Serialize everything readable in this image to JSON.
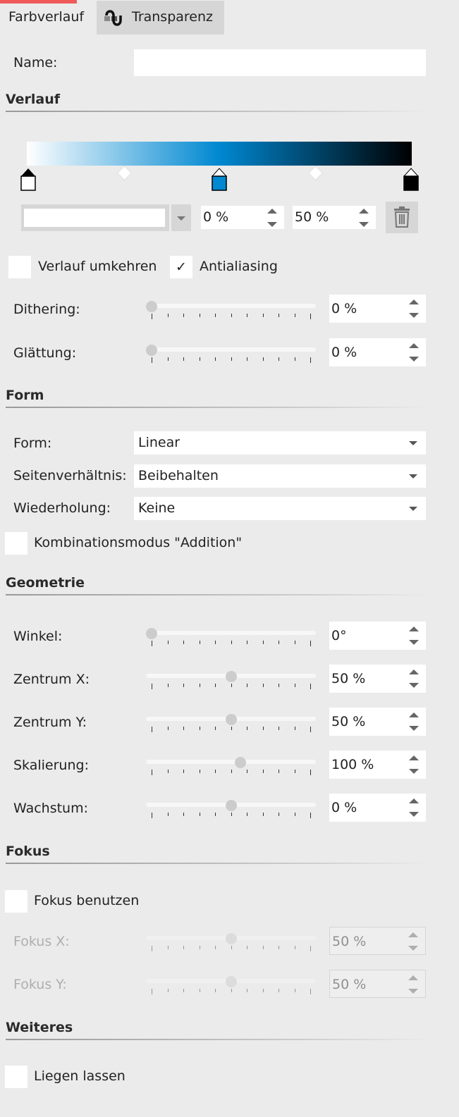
{
  "tabs": [
    {
      "label": "Farbverlauf",
      "active": true
    },
    {
      "label": "Transparenz",
      "icon": "transparency-icon"
    }
  ],
  "accent": "#f05a5a",
  "name": {
    "label": "Name:",
    "value": ""
  },
  "verlauf": {
    "title": "Verlauf",
    "gradient_colors": [
      "#ffffff",
      "#0088d1",
      "#000000"
    ],
    "stops": [
      {
        "color": "#ffffff"
      },
      {
        "color": "#0088d1"
      },
      {
        "color": "#000000"
      }
    ],
    "color_value": "",
    "position_value": "0 %",
    "midpoint_value": "50 %",
    "reverse_label": "Verlauf umkehren",
    "reverse_checked": false,
    "antialias_label": "Antialiasing",
    "antialias_checked": true,
    "check_mark": "✓",
    "dithering": {
      "label": "Dithering:",
      "value": "0 %",
      "level": 0
    },
    "smoothing": {
      "label": "Glättung:",
      "value": "0 %",
      "level": 0
    }
  },
  "form": {
    "title": "Form",
    "shape": {
      "label": "Form:",
      "value": "Linear"
    },
    "aspect": {
      "label": "Seitenverhältnis:",
      "value": "Beibehalten"
    },
    "repeat": {
      "label": "Wiederholung:",
      "value": "Keine"
    },
    "combine_label": "Kombinationsmodus \"Addition\"",
    "combine_checked": false
  },
  "geometrie": {
    "title": "Geometrie",
    "rows": [
      {
        "label": "Winkel:",
        "value": "0°",
        "level": 0
      },
      {
        "label": "Zentrum X:",
        "value": "50 %",
        "level": 0.5
      },
      {
        "label": "Zentrum Y:",
        "value": "50 %",
        "level": 0.5
      },
      {
        "label": "Skalierung:",
        "value": "100 %",
        "level": 0.56
      },
      {
        "label": "Wachstum:",
        "value": "0 %",
        "level": 0.5
      }
    ]
  },
  "fokus": {
    "title": "Fokus",
    "use_label": "Fokus benutzen",
    "use_checked": false,
    "rows": [
      {
        "label": "Fokus X:",
        "value": "50 %",
        "level": 0.5
      },
      {
        "label": "Fokus Y:",
        "value": "50 %",
        "level": 0.5
      }
    ]
  },
  "weiteres": {
    "title": "Weiteres",
    "keep_label": "Liegen lassen",
    "keep_checked": false
  }
}
